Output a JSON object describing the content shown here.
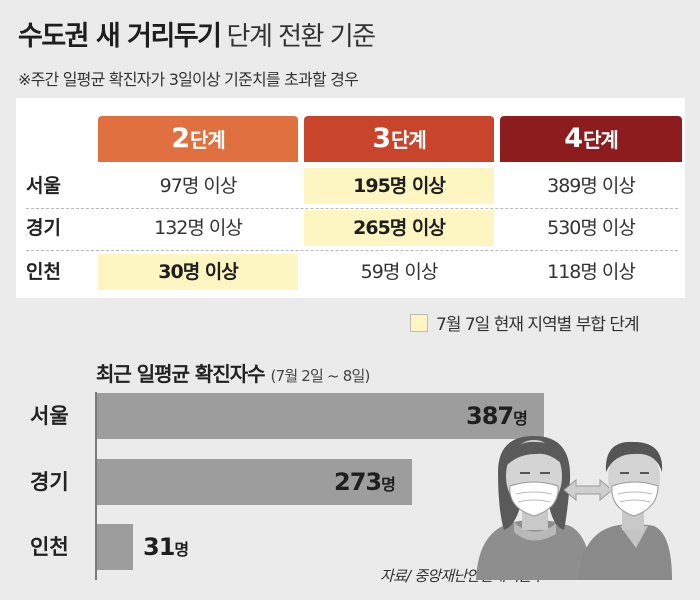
{
  "title": {
    "bold": "수도권 새 거리두기",
    "light": "단계 전환 기준"
  },
  "note": "※주간 일평균 확진자가 3일이상 기준치를 초과할 경우",
  "table": {
    "headers": [
      {
        "num": "2",
        "unit": "단계",
        "color": "#e0703f"
      },
      {
        "num": "3",
        "unit": "단계",
        "color": "#c8452c"
      },
      {
        "num": "4",
        "unit": "단계",
        "color": "#8c1c1e"
      }
    ],
    "rows": [
      {
        "region": "서울",
        "cells": [
          "97명 이상",
          "195명 이상",
          "389명 이상"
        ],
        "highlight": 1
      },
      {
        "region": "경기",
        "cells": [
          "132명 이상",
          "265명 이상",
          "530명 이상"
        ],
        "highlight": 1
      },
      {
        "region": "인천",
        "cells": [
          "30명 이상",
          "59명 이상",
          "118명 이상"
        ],
        "highlight": 0
      }
    ]
  },
  "legend": {
    "text": "7월 7일 현재 지역별 부합 단계",
    "color": "#fdf6c3"
  },
  "chart_data": {
    "type": "bar",
    "orientation": "horizontal",
    "title": "최근 일평균 확진자수",
    "subtitle": "(7월 2일 ~ 8일)",
    "categories": [
      "서울",
      "경기",
      "인천"
    ],
    "values": [
      387,
      273,
      31
    ],
    "value_labels": [
      "387",
      "273",
      "31"
    ],
    "unit": "명",
    "bar_color": "#9d9d9d"
  },
  "source": "자료/ 중앙재난안전대책본부"
}
